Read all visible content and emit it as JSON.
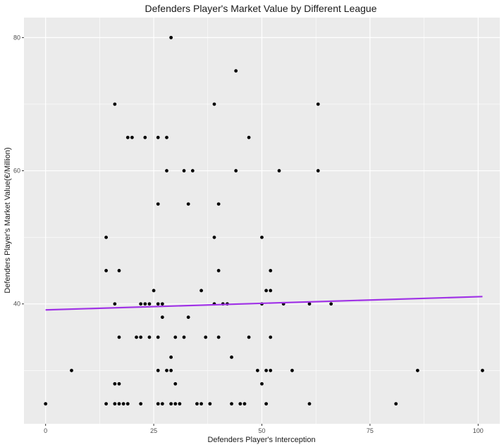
{
  "chart_data": {
    "type": "scatter",
    "title": "Defenders Player's Market Value by Different League",
    "xlabel": "Defenders Player's Interception",
    "ylabel": "Defenders Player's Market Value(€/Million)",
    "xlim": [
      -5,
      105
    ],
    "ylim": [
      22,
      83
    ],
    "x_ticks": [
      0,
      25,
      50,
      75,
      100
    ],
    "y_ticks": [
      40,
      60,
      80
    ],
    "grid": true,
    "background": "#ebebeb",
    "grid_major_color": "#ffffff",
    "point_color": "#000000",
    "trend_line": {
      "color": "#a033e6",
      "x": [
        0,
        101
      ],
      "y": [
        39.1,
        41.1
      ]
    },
    "points": [
      [
        29,
        80
      ],
      [
        44,
        75
      ],
      [
        16,
        70
      ],
      [
        39,
        70
      ],
      [
        63,
        70
      ],
      [
        19,
        65
      ],
      [
        20,
        65
      ],
      [
        23,
        65
      ],
      [
        26,
        65
      ],
      [
        28,
        65
      ],
      [
        47,
        65
      ],
      [
        28,
        60
      ],
      [
        32,
        60
      ],
      [
        34,
        60
      ],
      [
        44,
        60
      ],
      [
        54,
        60
      ],
      [
        63,
        60
      ],
      [
        26,
        55
      ],
      [
        33,
        55
      ],
      [
        40,
        55
      ],
      [
        14,
        50
      ],
      [
        39,
        50
      ],
      [
        50,
        50
      ],
      [
        14,
        45
      ],
      [
        17,
        45
      ],
      [
        40,
        45
      ],
      [
        52,
        45
      ],
      [
        25,
        42
      ],
      [
        36,
        42
      ],
      [
        51,
        42
      ],
      [
        52,
        42
      ],
      [
        16,
        40
      ],
      [
        22,
        40
      ],
      [
        23,
        40
      ],
      [
        24,
        40
      ],
      [
        26,
        40
      ],
      [
        27,
        40
      ],
      [
        39,
        40
      ],
      [
        41,
        40
      ],
      [
        42,
        40
      ],
      [
        50,
        40
      ],
      [
        55,
        40
      ],
      [
        61,
        40
      ],
      [
        66,
        40
      ],
      [
        27,
        38
      ],
      [
        33,
        38
      ],
      [
        17,
        35
      ],
      [
        21,
        35
      ],
      [
        22,
        35
      ],
      [
        24,
        35
      ],
      [
        26,
        35
      ],
      [
        30,
        35
      ],
      [
        32,
        35
      ],
      [
        37,
        35
      ],
      [
        40,
        35
      ],
      [
        47,
        35
      ],
      [
        52,
        35
      ],
      [
        29,
        32
      ],
      [
        43,
        32
      ],
      [
        6,
        30
      ],
      [
        26,
        30
      ],
      [
        28,
        30
      ],
      [
        29,
        30
      ],
      [
        49,
        30
      ],
      [
        51,
        30
      ],
      [
        52,
        30
      ],
      [
        57,
        30
      ],
      [
        86,
        30
      ],
      [
        101,
        30
      ],
      [
        16,
        28
      ],
      [
        17,
        28
      ],
      [
        30,
        28
      ],
      [
        50,
        28
      ],
      [
        0,
        25
      ],
      [
        14,
        25
      ],
      [
        16,
        25
      ],
      [
        17,
        25
      ],
      [
        18,
        25
      ],
      [
        19,
        25
      ],
      [
        22,
        25
      ],
      [
        26,
        25
      ],
      [
        27,
        25
      ],
      [
        29,
        25
      ],
      [
        30,
        25
      ],
      [
        31,
        25
      ],
      [
        35,
        25
      ],
      [
        36,
        25
      ],
      [
        38,
        25
      ],
      [
        43,
        25
      ],
      [
        45,
        25
      ],
      [
        46,
        25
      ],
      [
        51,
        25
      ],
      [
        61,
        25
      ],
      [
        81,
        25
      ]
    ]
  }
}
